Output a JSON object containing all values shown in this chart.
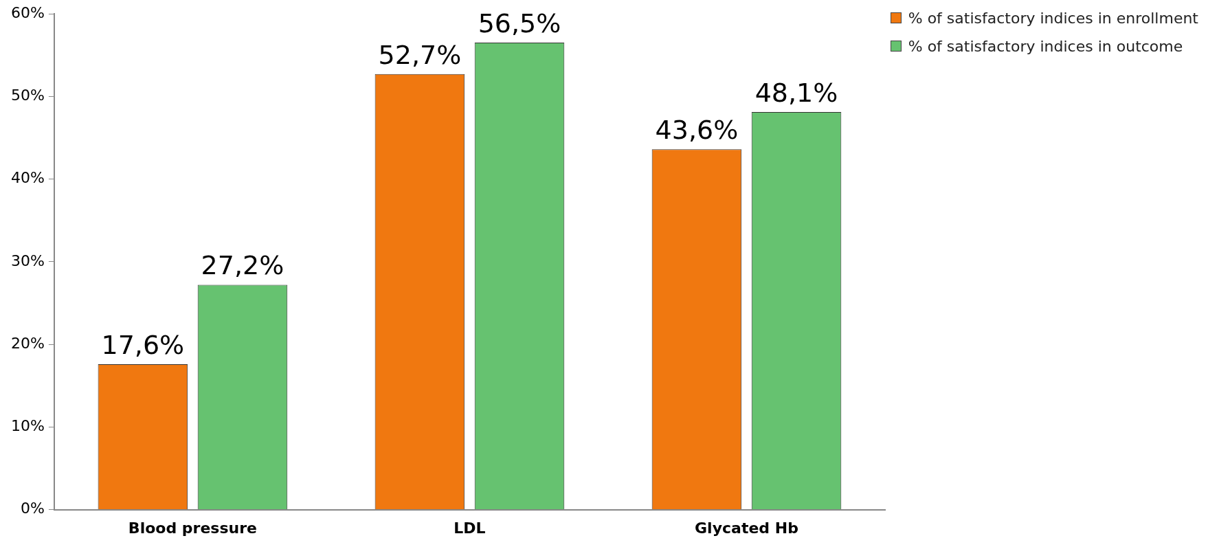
{
  "chart_data": {
    "type": "bar",
    "categories": [
      "Blood pressure",
      "LDL",
      "Glycated Hb"
    ],
    "series": [
      {
        "name": "% of satisfactory indices in enrollment",
        "color": "#f07810",
        "values": [
          17.6,
          52.7,
          43.6
        ],
        "value_labels": [
          "17,6%",
          "52,7%",
          "43,6%"
        ]
      },
      {
        "name": "% of satisfactory indices in outcome",
        "color": "#66c270",
        "values": [
          27.2,
          56.5,
          48.1
        ],
        "value_labels": [
          "27,2%",
          "56,5%",
          "48,1%"
        ]
      }
    ],
    "ylim": [
      0,
      60
    ],
    "yticks": [
      {
        "value": 0,
        "label": "0%"
      },
      {
        "value": 10,
        "label": "10%"
      },
      {
        "value": 20,
        "label": "20%"
      },
      {
        "value": 30,
        "label": "30%"
      },
      {
        "value": 40,
        "label": "40%"
      },
      {
        "value": 50,
        "label": "50%"
      },
      {
        "value": 60,
        "label": "60%"
      }
    ],
    "legend": "top right"
  }
}
